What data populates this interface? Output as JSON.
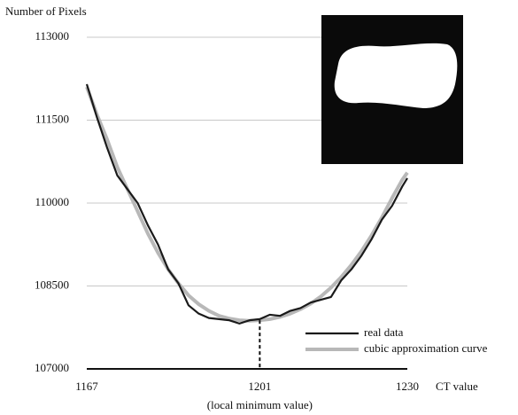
{
  "chart_data": {
    "type": "line",
    "y_label": "Number of Pixels",
    "x_label": "CT value",
    "annotation": {
      "text": "(local minimum value)",
      "x": 1201
    },
    "x": [
      1167,
      1169,
      1171,
      1173,
      1175,
      1177,
      1179,
      1181,
      1183,
      1185,
      1187,
      1189,
      1191,
      1193,
      1195,
      1197,
      1199,
      1201,
      1203,
      1205,
      1207,
      1209,
      1211,
      1213,
      1215,
      1217,
      1219,
      1221,
      1223,
      1225,
      1227,
      1229,
      1230
    ],
    "series": [
      {
        "name": "real data",
        "color": "#1a1a1a",
        "width": 2.2,
        "values": [
          112150,
          111550,
          111000,
          110500,
          110250,
          110000,
          109600,
          109250,
          108800,
          108550,
          108150,
          108000,
          107920,
          107900,
          107880,
          107820,
          107880,
          107900,
          107980,
          107960,
          108050,
          108100,
          108200,
          108250,
          108300,
          108600,
          108800,
          109050,
          109350,
          109700,
          109950,
          110300,
          110450
        ]
      },
      {
        "name": "cubic approximation curve",
        "color": "#b8b8b8",
        "width": 4,
        "values": [
          112100,
          111600,
          111150,
          110650,
          110250,
          109850,
          109450,
          109100,
          108800,
          108550,
          108330,
          108170,
          108050,
          107960,
          107910,
          107880,
          107870,
          107880,
          107900,
          107940,
          108000,
          108080,
          108180,
          108310,
          108470,
          108660,
          108880,
          109130,
          109420,
          109740,
          110090,
          110420,
          110550
        ]
      }
    ],
    "xlim": [
      1167,
      1230
    ],
    "xticks": [
      1167,
      1201,
      1230
    ],
    "ylim": [
      107000,
      113000
    ],
    "yticks": [
      107000,
      108500,
      110000,
      111500,
      113000
    ],
    "grid": true,
    "legend": "lower right"
  }
}
